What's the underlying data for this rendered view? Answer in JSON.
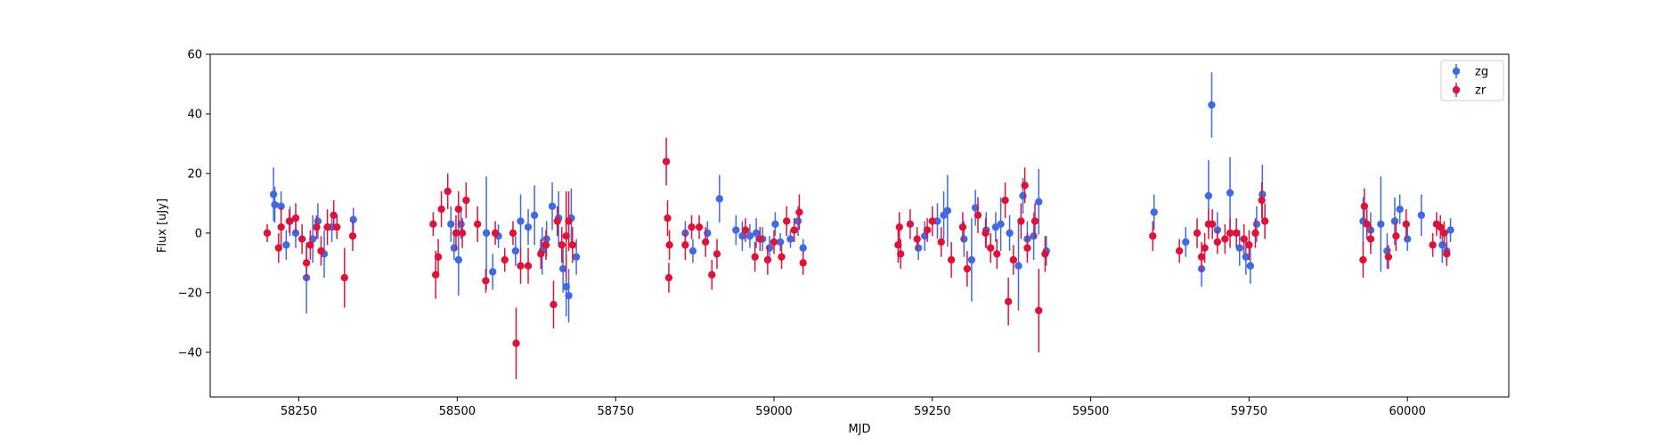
{
  "chart_data": {
    "type": "scatter",
    "title": "",
    "xlabel": "MJD",
    "ylabel": "Flux [uJy]",
    "xlim": [
      58110,
      60160
    ],
    "ylim": [
      -55,
      60
    ],
    "xticks": [
      58250,
      58500,
      58750,
      59000,
      59250,
      59500,
      59750,
      60000
    ],
    "yticks": [
      -40,
      -20,
      0,
      20,
      40,
      60
    ],
    "grid": false,
    "legend": {
      "placement": "top-right",
      "entries": [
        "zg",
        "zr"
      ]
    },
    "colors": {
      "zg": "#4169E1",
      "zr": "#DC143C"
    },
    "series": [
      {
        "name": "zg",
        "points": [
          [
            58210,
            13,
            9
          ],
          [
            58212,
            9.5,
            6
          ],
          [
            58222,
            9,
            5
          ],
          [
            58230,
            -4,
            5
          ],
          [
            58236,
            4,
            5
          ],
          [
            58245,
            0,
            5
          ],
          [
            58262,
            -15,
            12
          ],
          [
            58272,
            -2,
            8
          ],
          [
            58280,
            4,
            6
          ],
          [
            58290,
            -7,
            8
          ],
          [
            58302,
            2,
            5
          ],
          [
            58336,
            4.5,
            4
          ],
          [
            58490,
            3,
            6
          ],
          [
            58495,
            -5,
            4
          ],
          [
            58502,
            -9,
            12
          ],
          [
            58506,
            3,
            5
          ],
          [
            58546,
            0,
            19
          ],
          [
            58556,
            -13,
            6
          ],
          [
            58565,
            -1,
            4
          ],
          [
            58592,
            -6,
            5
          ],
          [
            58600,
            4,
            9
          ],
          [
            58612,
            2,
            6
          ],
          [
            58622,
            6,
            10
          ],
          [
            58634,
            -6,
            8
          ],
          [
            58641,
            -2,
            6
          ],
          [
            58650,
            9,
            8
          ],
          [
            58660,
            5,
            9
          ],
          [
            58667,
            -12,
            8
          ],
          [
            58672,
            -18,
            10
          ],
          [
            58676,
            -21,
            9
          ],
          [
            58680,
            5,
            10
          ],
          [
            58688,
            -8,
            6
          ],
          [
            58860,
            0,
            4
          ],
          [
            58872,
            -6,
            4
          ],
          [
            58895,
            0,
            4
          ],
          [
            58914,
            11.5,
            8
          ],
          [
            58940,
            1,
            5
          ],
          [
            58950,
            -1,
            5
          ],
          [
            58962,
            -1,
            4
          ],
          [
            58972,
            0,
            5
          ],
          [
            58982,
            -2,
            4
          ],
          [
            58993,
            -5,
            4
          ],
          [
            59002,
            3,
            4
          ],
          [
            59010,
            -3,
            3
          ],
          [
            59026,
            -2,
            3
          ],
          [
            59038,
            4,
            5
          ],
          [
            59046,
            -5,
            3
          ],
          [
            59228,
            -5,
            4
          ],
          [
            59238,
            -1,
            5
          ],
          [
            59258,
            4,
            6
          ],
          [
            59268,
            6,
            8
          ],
          [
            59274,
            7.5,
            12
          ],
          [
            59300,
            -2,
            6
          ],
          [
            59312,
            -9,
            14
          ],
          [
            59318,
            8.5,
            6
          ],
          [
            59335,
            1,
            6
          ],
          [
            59350,
            2,
            5
          ],
          [
            59358,
            3,
            9
          ],
          [
            59372,
            0,
            6
          ],
          [
            59386,
            -11,
            15
          ],
          [
            59393,
            12.5,
            6
          ],
          [
            59400,
            -2,
            6
          ],
          [
            59410,
            -1,
            8
          ],
          [
            59418,
            10.5,
            11
          ],
          [
            59430,
            -6,
            5
          ],
          [
            59600,
            7,
            6
          ],
          [
            59650,
            -3,
            5
          ],
          [
            59675,
            -12,
            6
          ],
          [
            59686,
            12.5,
            12
          ],
          [
            59691,
            43,
            11
          ],
          [
            59700,
            1,
            6
          ],
          [
            59720,
            13.5,
            12
          ],
          [
            59735,
            -5,
            6
          ],
          [
            59745,
            -8,
            6
          ],
          [
            59752,
            -11,
            6
          ],
          [
            59762,
            3,
            6
          ],
          [
            59771,
            13,
            10
          ],
          [
            59930,
            4,
            8
          ],
          [
            59942,
            1,
            6
          ],
          [
            59958,
            3,
            16
          ],
          [
            59968,
            -6,
            6
          ],
          [
            59980,
            4,
            8
          ],
          [
            59988,
            8,
            5
          ],
          [
            60000,
            -2,
            4
          ],
          [
            60022,
            6,
            7
          ],
          [
            60055,
            -4,
            6
          ],
          [
            60062,
            -6,
            5
          ],
          [
            60068,
            1,
            4
          ]
        ]
      },
      {
        "name": "zr",
        "points": [
          [
            58200,
            0,
            3
          ],
          [
            58218,
            -5,
            5
          ],
          [
            58222,
            2,
            7
          ],
          [
            58235,
            4,
            4
          ],
          [
            58245,
            5,
            5
          ],
          [
            58255,
            -2,
            5
          ],
          [
            58262,
            -10,
            6
          ],
          [
            58268,
            -4,
            5
          ],
          [
            58278,
            2,
            4
          ],
          [
            58285,
            -6,
            5
          ],
          [
            58295,
            2,
            6
          ],
          [
            58305,
            6,
            5
          ],
          [
            58310,
            2,
            4
          ],
          [
            58322,
            -15,
            10
          ],
          [
            58335,
            -1,
            5
          ],
          [
            58462,
            3,
            4
          ],
          [
            58466,
            -14,
            8
          ],
          [
            58470,
            -8,
            6
          ],
          [
            58475,
            8,
            6
          ],
          [
            58485,
            14,
            6
          ],
          [
            58498,
            0,
            6
          ],
          [
            58502,
            8,
            6
          ],
          [
            58508,
            0,
            5
          ],
          [
            58514,
            11,
            6
          ],
          [
            58532,
            3,
            6
          ],
          [
            58545,
            -16,
            4
          ],
          [
            58560,
            0,
            4
          ],
          [
            58575,
            -9,
            4
          ],
          [
            58588,
            0,
            4
          ],
          [
            58593,
            -37,
            12
          ],
          [
            58600,
            -11,
            6
          ],
          [
            58612,
            -11,
            6
          ],
          [
            58632,
            -7,
            5
          ],
          [
            58640,
            -4,
            5
          ],
          [
            58652,
            -24,
            8
          ],
          [
            58658,
            4,
            5
          ],
          [
            58665,
            -4,
            6
          ],
          [
            58672,
            -1,
            15
          ],
          [
            58676,
            4,
            10
          ],
          [
            58682,
            -4,
            6
          ],
          [
            58830,
            24,
            8
          ],
          [
            58832,
            5,
            6
          ],
          [
            58834,
            -15,
            5
          ],
          [
            58835,
            -4,
            5
          ],
          [
            58860,
            -4,
            5
          ],
          [
            58870,
            2,
            4
          ],
          [
            58882,
            2,
            4
          ],
          [
            58892,
            -3,
            5
          ],
          [
            58902,
            -14,
            5
          ],
          [
            58910,
            -7,
            5
          ],
          [
            58955,
            1,
            4
          ],
          [
            58970,
            -8,
            5
          ],
          [
            58978,
            -2,
            4
          ],
          [
            58990,
            -9,
            5
          ],
          [
            59000,
            -3,
            4
          ],
          [
            59012,
            -8,
            4
          ],
          [
            59020,
            4,
            5
          ],
          [
            59032,
            1,
            4
          ],
          [
            59040,
            7,
            6
          ],
          [
            59046,
            -10,
            4
          ],
          [
            59196,
            -4,
            6
          ],
          [
            59198,
            2,
            5
          ],
          [
            59200,
            -7,
            5
          ],
          [
            59215,
            3,
            5
          ],
          [
            59226,
            -2,
            4
          ],
          [
            59242,
            1,
            4
          ],
          [
            59250,
            4,
            5
          ],
          [
            59264,
            -3,
            5
          ],
          [
            59280,
            -9,
            6
          ],
          [
            59298,
            2,
            5
          ],
          [
            59305,
            -12,
            6
          ],
          [
            59322,
            6,
            6
          ],
          [
            59334,
            0,
            5
          ],
          [
            59342,
            -5,
            5
          ],
          [
            59352,
            -7,
            5
          ],
          [
            59365,
            11,
            6
          ],
          [
            59370,
            -23,
            8
          ],
          [
            59378,
            -9,
            5
          ],
          [
            59390,
            4,
            6
          ],
          [
            59396,
            16,
            6
          ],
          [
            59400,
            -5,
            5
          ],
          [
            59412,
            4,
            6
          ],
          [
            59418,
            -26,
            14
          ],
          [
            59428,
            -7,
            6
          ],
          [
            59598,
            -1,
            5
          ],
          [
            59640,
            -6,
            4
          ],
          [
            59668,
            0,
            5
          ],
          [
            59675,
            -8,
            5
          ],
          [
            59680,
            -5,
            5
          ],
          [
            59686,
            3,
            5
          ],
          [
            59692,
            3,
            5
          ],
          [
            59700,
            -3,
            4
          ],
          [
            59712,
            -2,
            5
          ],
          [
            59720,
            0,
            5
          ],
          [
            59730,
            0,
            5
          ],
          [
            59742,
            -2,
            5
          ],
          [
            59750,
            -4,
            5
          ],
          [
            59760,
            0,
            5
          ],
          [
            59770,
            11,
            6
          ],
          [
            59775,
            4,
            6
          ],
          [
            59930,
            -9,
            6
          ],
          [
            59932,
            9,
            6
          ],
          [
            59936,
            3,
            5
          ],
          [
            59942,
            -2,
            5
          ],
          [
            59970,
            -8,
            4
          ],
          [
            59982,
            -1,
            5
          ],
          [
            59998,
            3,
            5
          ],
          [
            60040,
            -4,
            4
          ],
          [
            60046,
            3,
            4
          ],
          [
            60052,
            2,
            4
          ],
          [
            60058,
            0,
            4
          ],
          [
            60062,
            -7,
            4
          ]
        ]
      }
    ]
  }
}
